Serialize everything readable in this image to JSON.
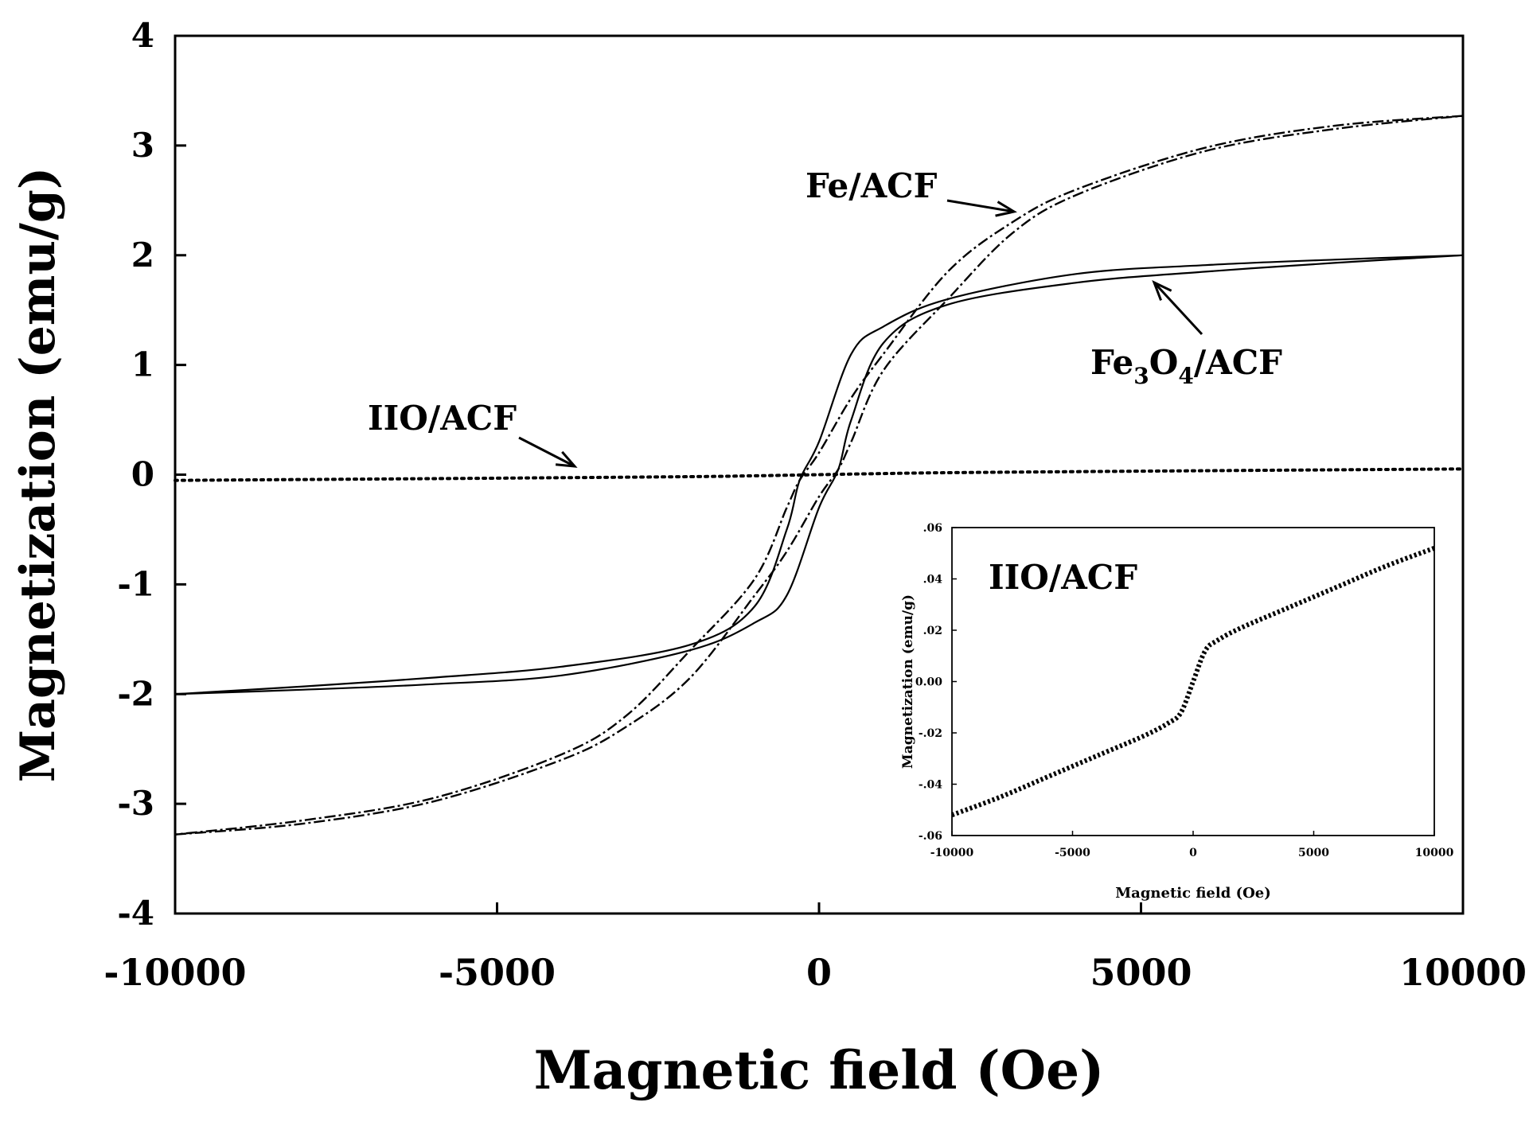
{
  "chart_data": [
    {
      "type": "line",
      "role": "main",
      "xlabel": "Magnetic field (Oe)",
      "ylabel": "Magnetization (emu/g)",
      "xlim": [
        -10000,
        10000
      ],
      "ylim": [
        -4,
        4
      ],
      "xticks": [
        -10000,
        -5000,
        0,
        5000,
        10000
      ],
      "xtick_labels": [
        "-10000",
        "-5000",
        "0",
        "5000",
        "10000"
      ],
      "yticks": [
        -4,
        -3,
        -2,
        -1,
        0,
        1,
        2,
        3,
        4
      ],
      "ytick_labels": [
        "-4",
        "-3",
        "-2",
        "-1",
        "0",
        "1",
        "2",
        "3",
        "4"
      ],
      "grid": false,
      "series": [
        {
          "name": "Fe/ACF",
          "style": "dash-dot",
          "branches": {
            "descending": {
              "x": [
                10000,
                8000,
                6000,
                4000,
                3000,
                2000,
                1000,
                500,
                0,
                -300,
                -500,
                -1000,
                -2000,
                -3000,
                -4000,
                -6000,
                -8000,
                -10000
              ],
              "y": [
                3.27,
                3.18,
                2.98,
                2.6,
                2.3,
                1.85,
                1.1,
                0.7,
                0.2,
                -0.05,
                -0.3,
                -0.95,
                -1.6,
                -2.2,
                -2.55,
                -2.95,
                -3.15,
                -3.28
              ]
            },
            "ascending": {
              "x": [
                -10000,
                -8000,
                -6000,
                -4000,
                -3000,
                -2000,
                -1000,
                -500,
                0,
                300,
                500,
                1000,
                2000,
                3000,
                4000,
                6000,
                8000,
                10000
              ],
              "y": [
                -3.28,
                -3.18,
                -2.98,
                -2.6,
                -2.3,
                -1.85,
                -1.1,
                -0.7,
                -0.2,
                0.05,
                0.3,
                0.95,
                1.6,
                2.2,
                2.55,
                2.95,
                3.15,
                3.27
              ]
            }
          }
        },
        {
          "name": "Fe3O4/ACF",
          "style": "solid",
          "branches": {
            "descending": {
              "x": [
                10000,
                8000,
                6000,
                4000,
                2000,
                1000,
                500,
                0,
                -300,
                -500,
                -1000,
                -2000,
                -4000,
                -6000,
                -8000,
                -10000
              ],
              "y": [
                2.0,
                1.96,
                1.91,
                1.83,
                1.6,
                1.35,
                1.1,
                0.3,
                -0.05,
                -0.5,
                -1.2,
                -1.55,
                -1.75,
                -1.85,
                -1.93,
                -2.0
              ]
            },
            "ascending": {
              "x": [
                -10000,
                -8000,
                -6000,
                -4000,
                -2000,
                -1000,
                -500,
                0,
                300,
                500,
                1000,
                2000,
                4000,
                6000,
                8000,
                10000
              ],
              "y": [
                -2.0,
                -1.96,
                -1.91,
                -1.83,
                -1.6,
                -1.35,
                -1.1,
                -0.3,
                0.05,
                0.5,
                1.2,
                1.55,
                1.75,
                1.85,
                1.93,
                2.0
              ]
            }
          }
        },
        {
          "name": "IIO/ACF",
          "style": "dotted",
          "x": [
            -10000,
            -5000,
            -2000,
            -1000,
            0,
            1000,
            2000,
            5000,
            10000
          ],
          "y": [
            -0.052,
            -0.032,
            -0.018,
            -0.01,
            0.0,
            0.01,
            0.018,
            0.032,
            0.052
          ]
        }
      ],
      "annotations": [
        {
          "label": "Fe/ACF",
          "points_to": "Fe/ACF"
        },
        {
          "label_parts": [
            "Fe",
            "3",
            "O",
            "4",
            "/ACF"
          ],
          "points_to": "Fe3O4/ACF"
        },
        {
          "label": "IIO/ACF",
          "points_to": "IIO/ACF"
        }
      ]
    },
    {
      "type": "line",
      "role": "inset",
      "title": "IIO/ACF",
      "xlabel": "Magnetic field (Oe)",
      "ylabel": "Magnetization (emu/g)",
      "xlim": [
        -10000,
        10000
      ],
      "ylim": [
        -0.06,
        0.06
      ],
      "xticks": [
        -10000,
        -5000,
        0,
        5000,
        10000
      ],
      "xtick_labels": [
        "-10000",
        "-5000",
        "0",
        "5000",
        "10000"
      ],
      "yticks": [
        -0.06,
        -0.04,
        -0.02,
        0.0,
        0.02,
        0.04,
        0.06
      ],
      "ytick_labels": [
        "-.06",
        "-.04",
        "-.02",
        "0.00",
        ".02",
        ".04",
        ".06"
      ],
      "series": [
        {
          "name": "IIO/ACF",
          "style": "dotted-thick",
          "x": [
            -10000,
            -8000,
            -6000,
            -4000,
            -2000,
            -1000,
            -500,
            0,
            500,
            1000,
            2000,
            4000,
            6000,
            8000,
            10000
          ],
          "y": [
            -0.052,
            -0.045,
            -0.037,
            -0.029,
            -0.021,
            -0.016,
            -0.012,
            0.0,
            0.012,
            0.016,
            0.021,
            0.029,
            0.037,
            0.045,
            0.052
          ]
        }
      ]
    }
  ]
}
